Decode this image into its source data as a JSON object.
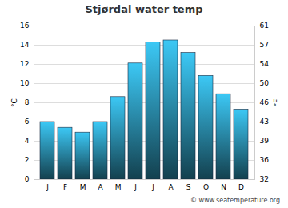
{
  "chart_data": {
    "type": "bar",
    "title": "Stjørdal water temp",
    "categories": [
      "J",
      "F",
      "M",
      "A",
      "M",
      "J",
      "J",
      "A",
      "S",
      "O",
      "N",
      "D"
    ],
    "values": [
      6.0,
      5.4,
      4.9,
      6.0,
      8.6,
      12.1,
      14.3,
      14.5,
      13.2,
      10.8,
      8.9,
      7.3
    ],
    "color": "#3cc8f5",
    "y_label": "°C",
    "y2_label": "°F",
    "ylim": [
      0,
      16
    ],
    "yticks": [
      0,
      2,
      4,
      6,
      8,
      10,
      12,
      14,
      16
    ],
    "y2lim": [
      32,
      60.8
    ],
    "y2ticks": [
      {
        "value": 32,
        "label": "32"
      },
      {
        "value": 35.6,
        "label": "36"
      },
      {
        "value": 39.2,
        "label": "39"
      },
      {
        "value": 42.8,
        "label": "43"
      },
      {
        "value": 46.4,
        "label": "46"
      },
      {
        "value": 50,
        "label": "50"
      },
      {
        "value": 53.6,
        "label": "54"
      },
      {
        "value": 57.2,
        "label": "57"
      },
      {
        "value": 60.8,
        "label": "61"
      }
    ],
    "grid": true,
    "caption": "© www.seatemperature.org"
  }
}
